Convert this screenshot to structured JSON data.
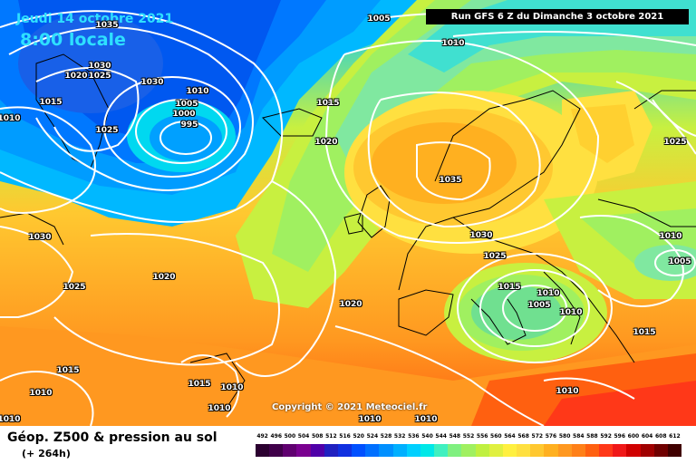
{
  "header": {
    "date": "Jeudi 14 octobre 2021",
    "time": "8:00 locale",
    "run": "Run GFS 6 Z du Dimanche 3 octobre 2021"
  },
  "copyright": "Copyright © 2021 Meteociel.fr",
  "footer": {
    "title": "Géop. Z500 & pression au sol",
    "subtitle": "(+ 264h)"
  },
  "scale": {
    "labels": [
      "492",
      "496",
      "500",
      "504",
      "508",
      "512",
      "516",
      "520",
      "524",
      "528",
      "532",
      "536",
      "540",
      "544",
      "548",
      "552",
      "556",
      "560",
      "564",
      "568",
      "572",
      "576",
      "580",
      "584",
      "588",
      "592",
      "596",
      "600",
      "604",
      "608",
      "612"
    ],
    "colors": [
      "#2b0030",
      "#40004a",
      "#600070",
      "#7a0090",
      "#5000a8",
      "#2020c0",
      "#1030e0",
      "#0050ff",
      "#0070ff",
      "#0090ff",
      "#00b0ff",
      "#00d0ff",
      "#00e8e8",
      "#40f0c0",
      "#80f080",
      "#a0f060",
      "#c0f040",
      "#e0f040",
      "#fff040",
      "#ffe040",
      "#ffc830",
      "#ffb020",
      "#ff9820",
      "#ff8018",
      "#ff6010",
      "#ff3818",
      "#f01818",
      "#d00000",
      "#a00000",
      "#700000",
      "#400000"
    ]
  },
  "isobars": [
    {
      "t": "1005"
    },
    {
      "t": "1010"
    },
    {
      "t": "1035"
    },
    {
      "t": "1030"
    },
    {
      "t": "1020"
    },
    {
      "t": "1025"
    },
    {
      "t": "1030"
    },
    {
      "t": "1010"
    },
    {
      "t": "1015"
    },
    {
      "t": "1005"
    },
    {
      "t": "1000"
    },
    {
      "t": "995"
    },
    {
      "t": "1025"
    },
    {
      "t": "1015"
    },
    {
      "t": "1020"
    },
    {
      "t": "1035"
    },
    {
      "t": "1025"
    },
    {
      "t": "1010"
    },
    {
      "t": "1030"
    },
    {
      "t": "1020"
    },
    {
      "t": "1025"
    },
    {
      "t": "1030"
    },
    {
      "t": "1025"
    },
    {
      "t": "1010"
    },
    {
      "t": "1005"
    },
    {
      "t": "1015"
    },
    {
      "t": "1010"
    },
    {
      "t": "1005"
    },
    {
      "t": "1010"
    },
    {
      "t": "1020"
    },
    {
      "t": "1015"
    },
    {
      "t": "1015"
    },
    {
      "t": "1010"
    },
    {
      "t": "1010"
    },
    {
      "t": "1015"
    },
    {
      "t": "1010"
    },
    {
      "t": "1010"
    },
    {
      "t": "1010"
    },
    {
      "t": "1010"
    },
    {
      "t": "1010"
    }
  ]
}
